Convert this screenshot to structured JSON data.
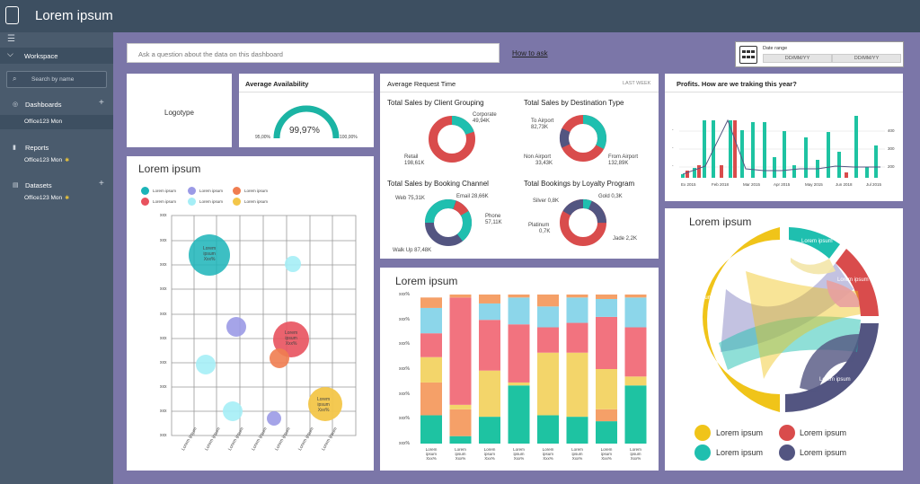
{
  "app": {
    "title": "Lorem ipsum"
  },
  "sidebar": {
    "workspace": "Workspace",
    "search_placeholder": "Search by name",
    "dashboards": "Dashboards",
    "dashboards_item": "Office123 Mon",
    "reports": "Reports",
    "reports_item": "Office123 Mon",
    "datasets": "Datasets",
    "datasets_item": "Office123 Mon"
  },
  "toolbar": {
    "ask_placeholder": "Ask a question about the data on this dashboard",
    "how_to_ask": "How to ask",
    "date_range_label": "Date range",
    "date_from": "DD/MM/YY",
    "date_to": "DD/MM/YY"
  },
  "logo_card": {
    "label": "Logotype"
  },
  "availability": {
    "title": "Average Availability",
    "value": "99,97%",
    "min": "95,00%",
    "max": "100,00%",
    "fraction": 0.9997
  },
  "request": {
    "title": "Average Request Time",
    "period": "LAST WEEK",
    "client": {
      "title": "Total Sales by Client Grouping",
      "corporate": "Corporate",
      "corporate_val": "49,94K",
      "retail": "Retail",
      "retail_val": "198,61K"
    },
    "destination": {
      "title": "Total Sales by Destination Type",
      "to_airport": "To Airport",
      "to_airport_val": "82,73K",
      "non_airport": "Non Airport",
      "non_airport_val": "33,43K",
      "from_airport": "From Airport",
      "from_airport_val": "132,89K"
    },
    "booking": {
      "title": "Total Sales by Booking Channel",
      "web": "Web 75,31K",
      "email": "Email 28,66K",
      "phone": "Phone",
      "phone_val": "57,11K",
      "walkup": "Walk Up 87,48K"
    },
    "loyalty": {
      "title": "Total Bookings by Loyalty Program",
      "silver": "Silver 0,8K",
      "gold": "Gold 0,3K",
      "platinum": "Platinum",
      "platinum_val": "0,7K",
      "jade": "Jade 2,2K"
    }
  },
  "profits": {
    "title": "Profits. How are we traking this year?",
    "x_labels": [
      "Ex 2015",
      "Feb 2018",
      "Mar 2015",
      "Apr 2015",
      "May 2015",
      "Jun 2018",
      "Jul 2015"
    ],
    "left_ticks": [
      "-",
      "-",
      "-",
      "-",
      "-"
    ],
    "right_ticks": [
      "400",
      "300",
      "200",
      "100",
      "0"
    ]
  },
  "bubble": {
    "title": "Lorem ipsum",
    "legend_label": "Lorem ipsum",
    "legend_colors": [
      "#1bb4b8",
      "#9b9ae6",
      "#f07d50",
      "#e8525e",
      "#a5eef6",
      "#f3c649"
    ],
    "y_tick": "xxx",
    "x_tick": "Lorem ipsum",
    "big_bubble_lines": [
      "Lorem",
      "ipsum",
      "Xxx%"
    ],
    "small_label": "Lorem ipsum"
  },
  "stacked": {
    "title": "Lorem ipsum",
    "y_tick": "xxx%",
    "x_lines": [
      "Lorem",
      "ipsum",
      "Xxx%"
    ],
    "colors": [
      "#1ec3a2",
      "#f5a068",
      "#f3d56a",
      "#f2737f",
      "#8cd6ea",
      "#f5a068"
    ],
    "columns": [
      [
        0.19,
        0.22,
        0.17,
        0.16,
        0.17,
        0.07
      ],
      [
        0.05,
        0.18,
        0.03,
        0.72,
        0.0,
        0.02
      ],
      [
        0.18,
        0.0,
        0.31,
        0.34,
        0.11,
        0.06
      ],
      [
        0.39,
        0.0,
        0.02,
        0.39,
        0.18,
        0.02
      ],
      [
        0.19,
        0.0,
        0.42,
        0.17,
        0.14,
        0.08
      ],
      [
        0.18,
        0.0,
        0.43,
        0.2,
        0.17,
        0.02
      ],
      [
        0.15,
        0.08,
        0.27,
        0.35,
        0.12,
        0.03
      ],
      [
        0.39,
        0.0,
        0.06,
        0.33,
        0.2,
        0.02
      ]
    ]
  },
  "chord": {
    "title": "Lorem ipsum",
    "segment_label": "Lorem ipsum",
    "legend": [
      {
        "label": "Lorem ipsum",
        "color": "#f0c419"
      },
      {
        "label": "Lorem ipsum",
        "color": "#d94c4c"
      },
      {
        "label": "Lorem ipsum",
        "color": "#1fbfaf"
      },
      {
        "label": "Lorem ipsum",
        "color": "#535581"
      }
    ]
  }
}
